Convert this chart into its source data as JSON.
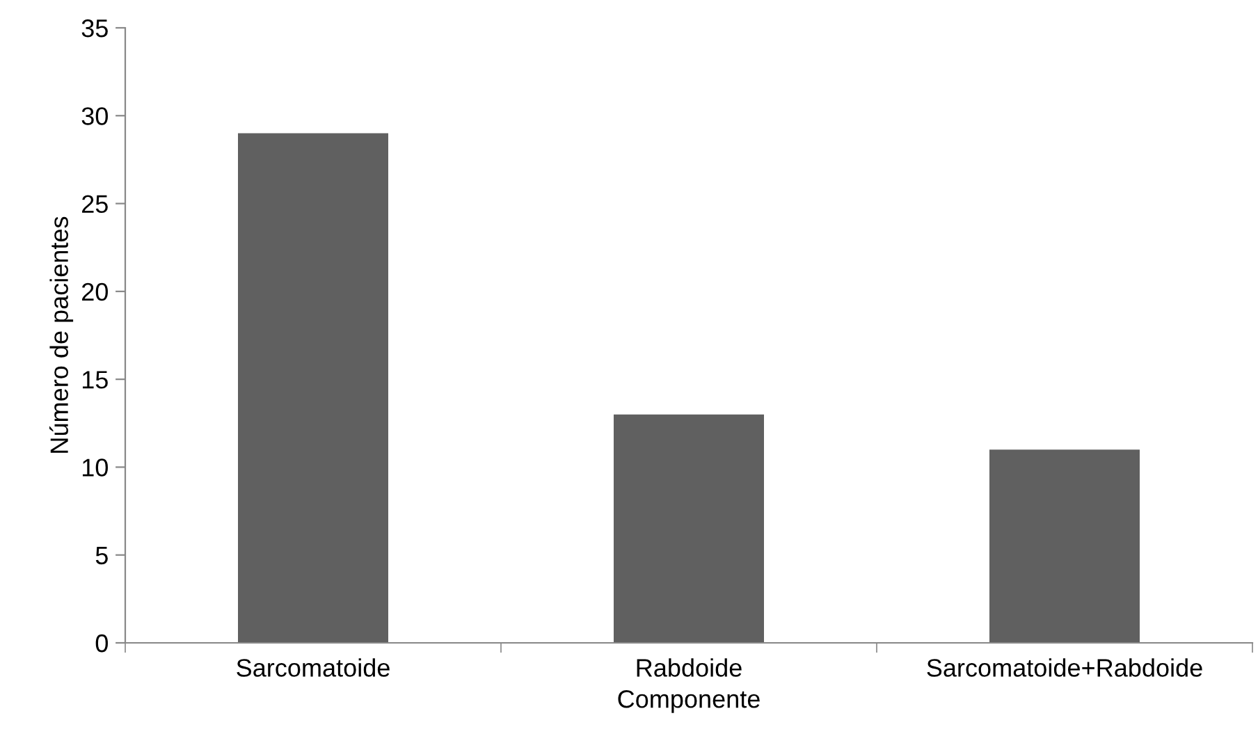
{
  "chart_data": {
    "type": "bar",
    "xlabel": "Componente",
    "ylabel": "Número de pacientes",
    "categories": [
      "Sarcomatoide",
      "Rabdoide",
      "Sarcomatoide+Rabdoide"
    ],
    "values": [
      29,
      13,
      11
    ],
    "color": "#606060",
    "ylim": [
      0,
      35
    ],
    "yticks": [
      0,
      5,
      10,
      15,
      20,
      25,
      30,
      35
    ],
    "grid": false,
    "legend": false
  }
}
